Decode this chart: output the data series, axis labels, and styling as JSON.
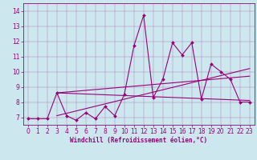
{
  "xlabel": "Windchill (Refroidissement éolien,°C)",
  "xlim": [
    -0.5,
    23.5
  ],
  "ylim": [
    6.5,
    14.5
  ],
  "xticks": [
    0,
    1,
    2,
    3,
    4,
    5,
    6,
    7,
    8,
    9,
    10,
    11,
    12,
    13,
    14,
    15,
    16,
    17,
    18,
    19,
    20,
    21,
    22,
    23
  ],
  "yticks": [
    7,
    8,
    9,
    10,
    11,
    12,
    13,
    14
  ],
  "bg_color": "#cce8ee",
  "line_color": "#990077",
  "data_x": [
    0,
    1,
    2,
    3,
    4,
    5,
    6,
    7,
    8,
    9,
    10,
    11,
    12,
    13,
    14,
    15,
    16,
    17,
    18,
    19,
    20,
    21,
    22,
    23
  ],
  "data_y": [
    6.9,
    6.9,
    6.9,
    8.6,
    7.1,
    6.8,
    7.3,
    6.9,
    7.7,
    7.1,
    8.5,
    11.7,
    13.7,
    8.3,
    9.5,
    11.9,
    11.1,
    11.9,
    8.2,
    10.5,
    10.0,
    9.5,
    8.0,
    8.0
  ],
  "trend_lines": [
    {
      "x": [
        3,
        23
      ],
      "y": [
        8.6,
        8.1
      ]
    },
    {
      "x": [
        3,
        23
      ],
      "y": [
        8.6,
        9.7
      ]
    },
    {
      "x": [
        3,
        23
      ],
      "y": [
        7.1,
        10.2
      ]
    }
  ],
  "marker": "D",
  "markersize": 2.0,
  "linewidth": 0.8,
  "tick_labelsize": 5.5,
  "xlabel_fontsize": 5.5
}
